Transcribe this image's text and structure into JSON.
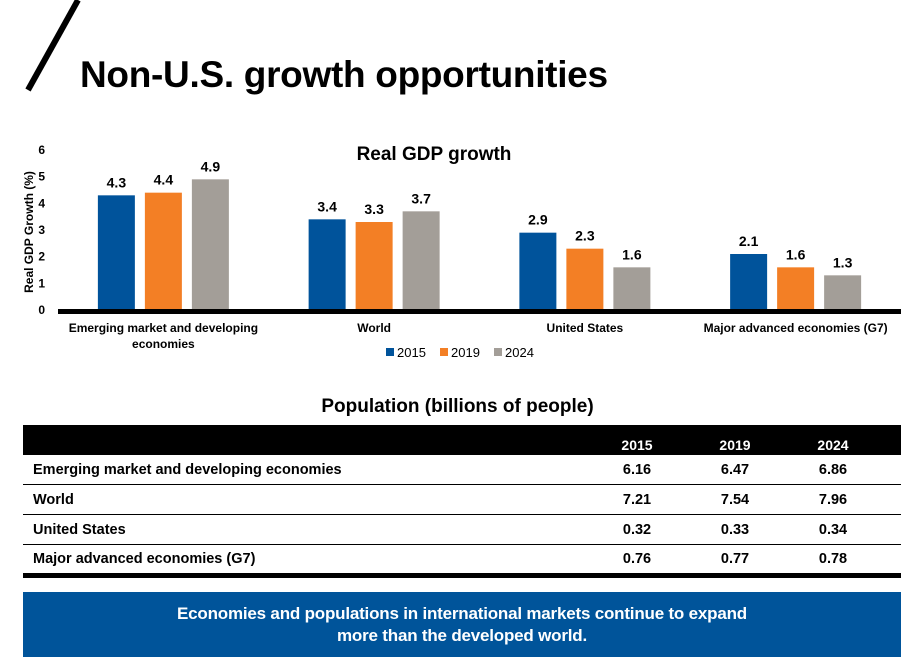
{
  "page": {
    "title": "Non-U.S. growth opportunities"
  },
  "colors": {
    "2015": "#00539b",
    "2019": "#f37f25",
    "2024": "#a39e98",
    "banner": "#00549a"
  },
  "chart_data": {
    "type": "bar",
    "title": "Real GDP growth",
    "xlabel": "",
    "ylabel": "Real GDP Growth (%)",
    "ylim": [
      0,
      6
    ],
    "yticks": [
      0,
      1,
      2,
      3,
      4,
      5,
      6
    ],
    "grid": false,
    "legend_position": "bottom-center",
    "categories": [
      [
        "Emerging market and developing",
        "economies"
      ],
      [
        "World"
      ],
      [
        "United States"
      ],
      [
        "Major advanced economies (G7)"
      ]
    ],
    "series": [
      {
        "name": "2015",
        "values": [
          4.3,
          3.4,
          2.9,
          2.1
        ]
      },
      {
        "name": "2019",
        "values": [
          4.4,
          3.3,
          2.3,
          1.6
        ]
      },
      {
        "name": "2024",
        "values": [
          4.9,
          3.7,
          1.6,
          1.3
        ]
      }
    ]
  },
  "population": {
    "title": "Population (billions of people)",
    "columns": [
      "2015",
      "2019",
      "2024"
    ],
    "rows": [
      {
        "name": "Emerging market and developing economies",
        "values": [
          "6.16",
          "6.47",
          "6.86"
        ]
      },
      {
        "name": "World",
        "values": [
          "7.21",
          "7.54",
          "7.96"
        ]
      },
      {
        "name": "United States",
        "values": [
          "0.32",
          "0.33",
          "0.34"
        ]
      },
      {
        "name": "Major advanced economies (G7)",
        "values": [
          "0.76",
          "0.77",
          "0.78"
        ]
      }
    ]
  },
  "banner": {
    "line1": "Economies and populations in international markets continue to expand",
    "line2": "more than the developed world."
  }
}
